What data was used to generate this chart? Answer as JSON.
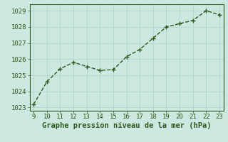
{
  "x": [
    9,
    10,
    11,
    12,
    13,
    14,
    15,
    16,
    17,
    18,
    19,
    20,
    21,
    22,
    23
  ],
  "y": [
    1023.2,
    1024.6,
    1025.4,
    1025.8,
    1025.55,
    1025.3,
    1025.35,
    1026.15,
    1026.6,
    1027.3,
    1028.0,
    1028.2,
    1028.4,
    1029.0,
    1028.75
  ],
  "xlim": [
    8.7,
    23.3
  ],
  "ylim": [
    1022.8,
    1029.4
  ],
  "yticks": [
    1023,
    1024,
    1025,
    1026,
    1027,
    1028,
    1029
  ],
  "xticks": [
    9,
    10,
    11,
    12,
    13,
    14,
    15,
    16,
    17,
    18,
    19,
    20,
    21,
    22,
    23
  ],
  "xlabel": "Graphe pression niveau de la mer (hPa)",
  "line_color": "#2d5a1b",
  "marker": "+",
  "bg_color": "#cce8e0",
  "grid_color": "#b0d8ce",
  "tick_label_fontsize": 6.5,
  "xlabel_fontsize": 7.5,
  "linewidth": 1.0
}
